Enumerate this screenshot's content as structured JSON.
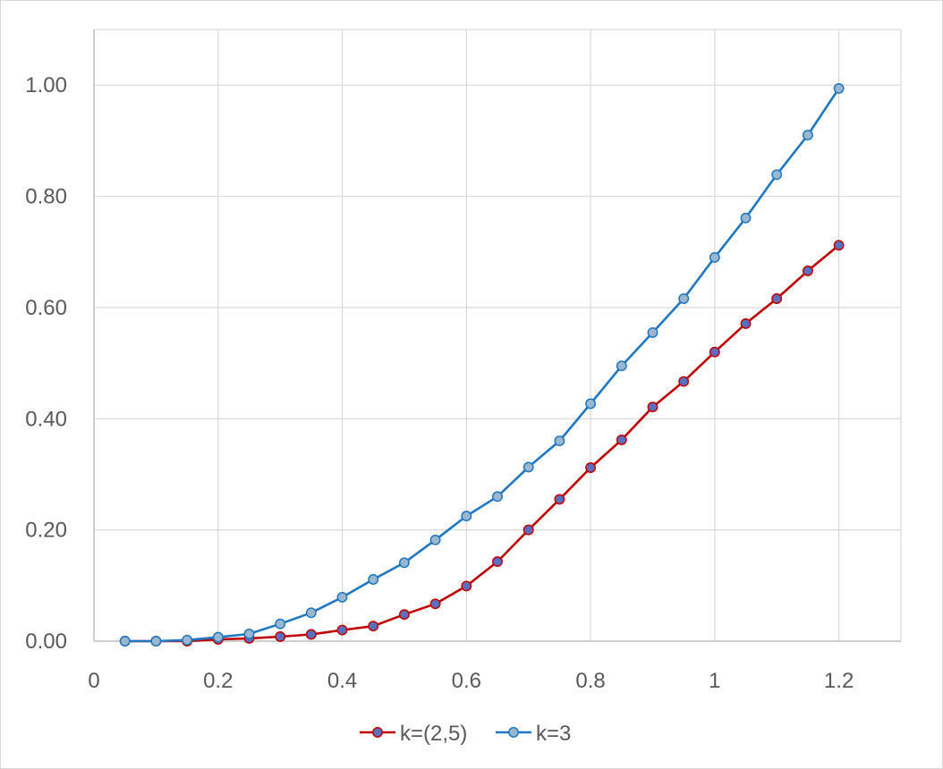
{
  "chart_data": {
    "type": "line",
    "title": "",
    "xlabel": "",
    "ylabel": "",
    "xlim": [
      0,
      1.3
    ],
    "ylim": [
      0,
      1.1
    ],
    "x_ticks": [
      0,
      0.2,
      0.4,
      0.6,
      0.8,
      1,
      1.2
    ],
    "x_tick_labels": [
      "0",
      "0.2",
      "0.4",
      "0.6",
      "0.8",
      "1",
      "1.2"
    ],
    "y_ticks": [
      0,
      0.2,
      0.4,
      0.6,
      0.8,
      1.0
    ],
    "y_tick_labels": [
      "0.00",
      "0.20",
      "0.40",
      "0.60",
      "0.80",
      "1.00"
    ],
    "grid": true,
    "legend_position": "bottom",
    "x": [
      0.05,
      0.1,
      0.15,
      0.2,
      0.25,
      0.3,
      0.35,
      0.4,
      0.45,
      0.5,
      0.55,
      0.6,
      0.65,
      0.7,
      0.75,
      0.8,
      0.85,
      0.9,
      0.95,
      1.0,
      1.05,
      1.1,
      1.15,
      1.2
    ],
    "series": [
      {
        "name": "k=(2,5)",
        "color": "#c00000",
        "marker_fill": "#5b6fc0",
        "values": [
          0.0,
          0.0,
          0.0,
          0.003,
          0.005,
          0.008,
          0.012,
          0.02,
          0.027,
          0.048,
          0.067,
          0.099,
          0.143,
          0.2,
          0.255,
          0.312,
          0.362,
          0.421,
          0.467,
          0.52,
          0.571,
          0.616,
          0.666,
          0.712
        ]
      },
      {
        "name": "k=3",
        "color": "#1f78c1",
        "marker_fill": "#9bb7cf",
        "values": [
          0.0,
          0.0,
          0.002,
          0.007,
          0.013,
          0.031,
          0.051,
          0.079,
          0.111,
          0.141,
          0.182,
          0.225,
          0.26,
          0.313,
          0.36,
          0.427,
          0.495,
          0.555,
          0.616,
          0.69,
          0.761,
          0.839,
          0.91,
          0.994
        ]
      }
    ]
  }
}
